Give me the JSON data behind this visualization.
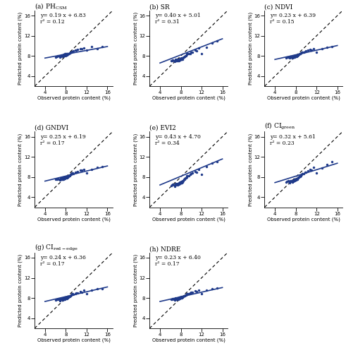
{
  "panels": [
    {
      "label_main": "(a) PH",
      "label_sub": "CSM",
      "has_sub": true,
      "equation": "y= 0.19 x + 6.83",
      "r2": "r² = 0.12",
      "slope": 0.19,
      "intercept": 6.83,
      "x_data": [
        6.1,
        6.3,
        6.5,
        6.7,
        6.8,
        6.9,
        7.0,
        7.0,
        7.1,
        7.1,
        7.2,
        7.3,
        7.3,
        7.4,
        7.4,
        7.5,
        7.5,
        7.6,
        7.6,
        7.7,
        7.7,
        7.8,
        7.8,
        7.8,
        7.9,
        7.9,
        8.0,
        8.0,
        8.0,
        8.1,
        8.1,
        8.2,
        8.2,
        8.3,
        8.3,
        8.4,
        8.5,
        8.6,
        8.7,
        8.8,
        8.9,
        9.0,
        9.1,
        9.2,
        9.3,
        9.5,
        9.8,
        10.0,
        10.3,
        10.8,
        11.0,
        11.5,
        12.0,
        13.0,
        14.0,
        15.0
      ],
      "y_data": [
        7.8,
        7.9,
        8.0,
        8.1,
        7.8,
        8.0,
        8.1,
        7.9,
        8.2,
        8.0,
        8.1,
        8.0,
        8.2,
        8.1,
        7.9,
        8.2,
        8.0,
        8.1,
        8.3,
        8.2,
        8.1,
        8.3,
        8.4,
        8.2,
        8.3,
        8.1,
        8.4,
        8.2,
        8.3,
        8.5,
        8.3,
        8.4,
        8.2,
        8.4,
        8.3,
        8.5,
        8.5,
        8.5,
        8.6,
        8.6,
        8.7,
        8.7,
        8.8,
        8.9,
        8.9,
        9.0,
        9.1,
        9.2,
        9.3,
        9.5,
        9.4,
        9.6,
        9.2,
        9.8,
        9.5,
        9.8
      ]
    },
    {
      "label_main": "(b) SR",
      "label_sub": "",
      "has_sub": false,
      "equation": "y= 0.40 x + 5.01",
      "r2": "r² = 0.31",
      "slope": 0.4,
      "intercept": 5.01,
      "x_data": [
        6.1,
        6.3,
        6.5,
        6.7,
        6.8,
        6.9,
        7.0,
        7.0,
        7.1,
        7.1,
        7.2,
        7.3,
        7.3,
        7.4,
        7.4,
        7.5,
        7.5,
        7.6,
        7.6,
        7.7,
        7.7,
        7.8,
        7.8,
        7.8,
        7.9,
        7.9,
        8.0,
        8.0,
        8.0,
        8.1,
        8.1,
        8.2,
        8.2,
        8.3,
        8.3,
        8.4,
        8.5,
        8.6,
        8.7,
        8.8,
        8.9,
        9.0,
        9.1,
        9.2,
        9.3,
        9.5,
        9.8,
        10.0,
        10.3,
        10.8,
        11.0,
        11.5,
        12.0,
        13.0,
        14.0,
        15.0
      ],
      "y_data": [
        7.0,
        7.1,
        7.2,
        7.0,
        6.9,
        7.1,
        7.3,
        7.0,
        7.2,
        7.1,
        7.2,
        7.0,
        7.3,
        7.2,
        7.0,
        7.3,
        7.1,
        7.2,
        7.4,
        7.3,
        7.1,
        7.4,
        7.5,
        7.2,
        7.4,
        7.3,
        7.5,
        7.3,
        7.4,
        7.6,
        7.4,
        7.5,
        7.3,
        7.5,
        7.4,
        7.6,
        7.7,
        7.8,
        7.9,
        7.9,
        8.1,
        8.1,
        8.3,
        8.5,
        8.5,
        8.4,
        8.5,
        8.7,
        8.8,
        9.1,
        9.0,
        9.6,
        8.5,
        9.7,
        10.6,
        11.0
      ]
    },
    {
      "label_main": "(c) NDVI",
      "label_sub": "",
      "has_sub": false,
      "equation": "y= 0.23 x + 6.39",
      "r2": "r² = 0.15",
      "slope": 0.23,
      "intercept": 6.39,
      "x_data": [
        6.1,
        6.3,
        6.5,
        6.7,
        6.8,
        6.9,
        7.0,
        7.0,
        7.1,
        7.1,
        7.2,
        7.3,
        7.3,
        7.4,
        7.4,
        7.5,
        7.5,
        7.6,
        7.6,
        7.7,
        7.7,
        7.8,
        7.8,
        7.8,
        7.9,
        7.9,
        8.0,
        8.0,
        8.0,
        8.1,
        8.1,
        8.2,
        8.2,
        8.3,
        8.3,
        8.4,
        8.5,
        8.6,
        8.7,
        8.8,
        8.9,
        9.0,
        9.1,
        9.2,
        9.3,
        9.5,
        9.8,
        10.0,
        10.3,
        10.8,
        11.0,
        11.5,
        12.0,
        13.0,
        14.0,
        15.0
      ],
      "y_data": [
        7.6,
        7.7,
        7.8,
        7.7,
        7.6,
        7.7,
        7.9,
        7.7,
        7.8,
        7.7,
        7.8,
        7.7,
        7.9,
        7.8,
        7.6,
        7.9,
        7.7,
        7.8,
        8.0,
        7.9,
        7.8,
        8.0,
        8.1,
        7.8,
        8.0,
        7.9,
        8.1,
        7.9,
        8.0,
        8.2,
        8.0,
        8.1,
        7.9,
        8.1,
        8.0,
        8.2,
        8.2,
        8.3,
        8.4,
        8.4,
        8.5,
        8.6,
        8.7,
        8.8,
        8.8,
        8.7,
        8.9,
        9.0,
        9.1,
        9.3,
        9.2,
        9.5,
        8.8,
        9.4,
        9.7,
        9.8
      ]
    },
    {
      "label_main": "(d) GNDVI",
      "label_sub": "",
      "has_sub": false,
      "equation": "y= 0.25 x + 6.19",
      "r2": "r² = 0.17",
      "slope": 0.25,
      "intercept": 6.19,
      "x_data": [
        6.1,
        6.3,
        6.5,
        6.7,
        6.8,
        6.9,
        7.0,
        7.0,
        7.1,
        7.1,
        7.2,
        7.3,
        7.3,
        7.4,
        7.4,
        7.5,
        7.5,
        7.6,
        7.6,
        7.7,
        7.7,
        7.8,
        7.8,
        7.8,
        7.9,
        7.9,
        8.0,
        8.0,
        8.0,
        8.1,
        8.1,
        8.2,
        8.2,
        8.3,
        8.3,
        8.4,
        8.5,
        8.6,
        8.7,
        8.8,
        8.9,
        9.0,
        9.1,
        9.2,
        9.3,
        9.5,
        9.8,
        10.0,
        10.3,
        10.8,
        11.0,
        11.5,
        12.0,
        13.0,
        14.0,
        15.0
      ],
      "y_data": [
        7.5,
        7.6,
        7.7,
        7.6,
        7.4,
        7.6,
        7.8,
        7.6,
        7.7,
        7.6,
        7.7,
        7.6,
        7.8,
        7.7,
        7.5,
        7.8,
        7.6,
        7.7,
        7.9,
        7.8,
        7.7,
        7.9,
        8.0,
        7.7,
        7.9,
        7.8,
        8.0,
        7.8,
        7.9,
        8.1,
        7.9,
        8.0,
        7.8,
        8.0,
        7.9,
        8.1,
        8.1,
        8.3,
        8.3,
        8.4,
        8.5,
        8.5,
        8.6,
        8.8,
        8.8,
        8.7,
        8.9,
        9.0,
        9.1,
        9.4,
        9.3,
        9.5,
        8.8,
        9.5,
        9.9,
        10.0
      ]
    },
    {
      "label_main": "(e) EVI2",
      "label_sub": "",
      "has_sub": false,
      "equation": "y= 0.43 x + 4.70",
      "r2": "r² = 0.34",
      "slope": 0.43,
      "intercept": 4.7,
      "x_data": [
        6.1,
        6.3,
        6.5,
        6.7,
        6.8,
        6.9,
        7.0,
        7.0,
        7.1,
        7.1,
        7.2,
        7.3,
        7.3,
        7.4,
        7.4,
        7.5,
        7.5,
        7.6,
        7.6,
        7.7,
        7.7,
        7.8,
        7.8,
        7.8,
        7.9,
        7.9,
        8.0,
        8.0,
        8.0,
        8.1,
        8.1,
        8.2,
        8.2,
        8.3,
        8.3,
        8.4,
        8.5,
        8.6,
        8.7,
        8.8,
        8.9,
        9.0,
        9.1,
        9.2,
        9.3,
        9.5,
        9.8,
        10.0,
        10.3,
        10.8,
        11.0,
        11.5,
        12.0,
        13.0,
        14.0,
        15.0
      ],
      "y_data": [
        6.3,
        6.4,
        6.5,
        6.4,
        6.2,
        6.4,
        6.7,
        6.4,
        6.6,
        6.5,
        6.6,
        6.5,
        6.7,
        6.6,
        6.4,
        6.7,
        6.5,
        6.7,
        6.9,
        6.8,
        6.6,
        6.9,
        7.0,
        6.7,
        6.9,
        6.8,
        7.0,
        6.8,
        6.9,
        7.1,
        6.9,
        7.1,
        6.9,
        7.1,
        7.0,
        7.2,
        7.3,
        7.5,
        7.6,
        7.7,
        7.8,
        7.8,
        8.0,
        8.2,
        8.3,
        8.2,
        8.5,
        8.6,
        8.8,
        9.1,
        9.0,
        9.5,
        8.5,
        10.0,
        10.8,
        11.1
      ]
    },
    {
      "label_main": "(f) CI",
      "label_sub": "green",
      "has_sub": true,
      "equation": "y= 0.32 x + 5.61",
      "r2": "r² = 0.23",
      "slope": 0.32,
      "intercept": 5.61,
      "x_data": [
        6.1,
        6.3,
        6.5,
        6.7,
        6.8,
        6.9,
        7.0,
        7.0,
        7.1,
        7.1,
        7.2,
        7.3,
        7.3,
        7.4,
        7.4,
        7.5,
        7.5,
        7.6,
        7.6,
        7.7,
        7.7,
        7.8,
        7.8,
        7.8,
        7.9,
        7.9,
        8.0,
        8.0,
        8.0,
        8.1,
        8.1,
        8.2,
        8.2,
        8.3,
        8.3,
        8.4,
        8.5,
        8.6,
        8.7,
        8.8,
        8.9,
        9.0,
        9.1,
        9.2,
        9.3,
        9.5,
        9.8,
        10.0,
        10.3,
        10.8,
        11.0,
        11.5,
        12.0,
        13.0,
        14.0,
        15.0
      ],
      "y_data": [
        7.0,
        7.1,
        7.2,
        7.1,
        6.9,
        7.1,
        7.3,
        7.1,
        7.2,
        7.1,
        7.2,
        7.1,
        7.3,
        7.2,
        7.0,
        7.3,
        7.1,
        7.3,
        7.5,
        7.4,
        7.2,
        7.4,
        7.5,
        7.3,
        7.5,
        7.4,
        7.6,
        7.4,
        7.5,
        7.7,
        7.5,
        7.7,
        7.5,
        7.7,
        7.6,
        7.8,
        7.9,
        8.0,
        8.1,
        8.1,
        8.3,
        8.3,
        8.5,
        8.7,
        8.7,
        8.6,
        8.9,
        9.0,
        9.2,
        9.5,
        9.4,
        9.9,
        8.8,
        9.8,
        10.5,
        11.1
      ]
    },
    {
      "label_main": "(g) CI",
      "label_sub": "red-edge",
      "has_sub": true,
      "equation": "y= 0.24 x + 6.36",
      "r2": "r² = 0.17",
      "slope": 0.24,
      "intercept": 6.36,
      "x_data": [
        6.1,
        6.3,
        6.5,
        6.7,
        6.8,
        6.9,
        7.0,
        7.0,
        7.1,
        7.1,
        7.2,
        7.3,
        7.3,
        7.4,
        7.4,
        7.5,
        7.5,
        7.6,
        7.6,
        7.7,
        7.7,
        7.8,
        7.8,
        7.8,
        7.9,
        7.9,
        8.0,
        8.0,
        8.0,
        8.1,
        8.1,
        8.2,
        8.2,
        8.3,
        8.3,
        8.4,
        8.5,
        8.6,
        8.7,
        8.8,
        8.9,
        9.0,
        9.1,
        9.2,
        9.3,
        9.5,
        9.8,
        10.0,
        10.3,
        10.8,
        11.0,
        11.5,
        12.0,
        13.0,
        14.0,
        15.0
      ],
      "y_data": [
        7.6,
        7.7,
        7.8,
        7.7,
        7.5,
        7.7,
        7.9,
        7.7,
        7.8,
        7.7,
        7.8,
        7.7,
        7.9,
        7.8,
        7.6,
        7.9,
        7.7,
        7.8,
        8.0,
        7.9,
        7.8,
        8.0,
        8.1,
        7.8,
        8.0,
        7.9,
        8.1,
        7.9,
        8.0,
        8.1,
        8.0,
        8.1,
        7.9,
        8.1,
        8.0,
        8.2,
        8.2,
        8.3,
        8.4,
        8.3,
        8.5,
        8.6,
        8.6,
        8.8,
        8.8,
        8.7,
        8.9,
        9.0,
        9.0,
        9.3,
        9.2,
        9.5,
        8.8,
        9.5,
        9.8,
        9.9
      ]
    },
    {
      "label_main": "(h) NDRE",
      "label_sub": "",
      "has_sub": false,
      "equation": "y= 0.23 x + 6.40",
      "r2": "r² = 0.17",
      "slope": 0.23,
      "intercept": 6.4,
      "x_data": [
        6.1,
        6.3,
        6.5,
        6.7,
        6.8,
        6.9,
        7.0,
        7.0,
        7.1,
        7.1,
        7.2,
        7.3,
        7.3,
        7.4,
        7.4,
        7.5,
        7.5,
        7.6,
        7.6,
        7.7,
        7.7,
        7.8,
        7.8,
        7.8,
        7.9,
        7.9,
        8.0,
        8.0,
        8.0,
        8.1,
        8.1,
        8.2,
        8.2,
        8.3,
        8.3,
        8.4,
        8.5,
        8.6,
        8.7,
        8.8,
        8.9,
        9.0,
        9.1,
        9.2,
        9.3,
        9.5,
        9.8,
        10.0,
        10.3,
        10.8,
        11.0,
        11.5,
        12.0,
        13.0,
        14.0,
        15.0
      ],
      "y_data": [
        7.7,
        7.8,
        7.9,
        7.8,
        7.6,
        7.8,
        8.0,
        7.8,
        7.9,
        7.8,
        7.9,
        7.8,
        8.0,
        7.9,
        7.7,
        8.0,
        7.8,
        7.9,
        8.1,
        8.0,
        7.9,
        8.1,
        8.2,
        7.9,
        8.1,
        8.0,
        8.2,
        8.0,
        8.1,
        8.3,
        8.1,
        8.2,
        8.0,
        8.2,
        8.1,
        8.3,
        8.3,
        8.4,
        8.5,
        8.5,
        8.6,
        8.6,
        8.7,
        8.8,
        8.9,
        8.8,
        9.0,
        9.1,
        9.2,
        9.4,
        9.3,
        9.6,
        8.9,
        9.6,
        9.9,
        10.0
      ]
    }
  ],
  "dot_color": "#1F3A8A",
  "line_color": "#1F3A8A",
  "dot_size": 6,
  "xlim": [
    2,
    17
  ],
  "ylim": [
    2,
    17
  ],
  "xticks": [
    4,
    8,
    12,
    16
  ],
  "yticks": [
    4,
    8,
    12,
    16
  ],
  "xlabel": "Observed protein content (%)",
  "ylabel": "Predicted protein content (%)",
  "figsize": [
    4.91,
    5.0
  ],
  "dpi": 100,
  "xline_range": [
    4,
    16
  ],
  "note_fontsize": 5.5,
  "tick_fontsize": 5,
  "label_fontsize": 5,
  "title_fontsize": 6.5
}
